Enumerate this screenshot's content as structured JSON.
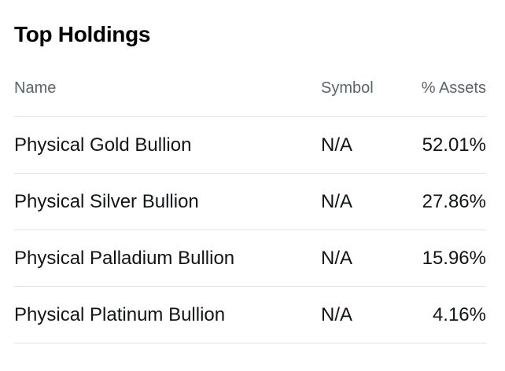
{
  "section": {
    "title": "Top Holdings"
  },
  "table": {
    "headers": {
      "name": "Name",
      "symbol": "Symbol",
      "assets": "% Assets"
    },
    "rows": [
      {
        "name": "Physical Gold Bullion",
        "symbol": "N/A",
        "assets": "52.01%"
      },
      {
        "name": "Physical Silver Bullion",
        "symbol": "N/A",
        "assets": "27.86%"
      },
      {
        "name": "Physical Palladium Bullion",
        "symbol": "N/A",
        "assets": "15.96%"
      },
      {
        "name": "Physical Platinum Bullion",
        "symbol": "N/A",
        "assets": "4.16%"
      }
    ]
  }
}
